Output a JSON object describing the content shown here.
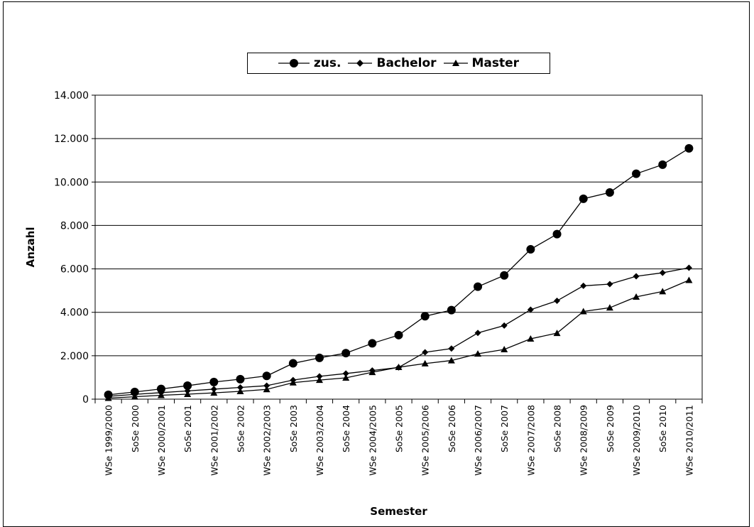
{
  "chart_data": {
    "type": "line",
    "title": "",
    "xlabel": "Semester",
    "ylabel": "Anzahl",
    "ylim": [
      0,
      14000
    ],
    "yticks": [
      0,
      2000,
      4000,
      6000,
      8000,
      10000,
      12000,
      14000
    ],
    "ytick_labels": [
      "0",
      "2.000",
      "4.000",
      "6.000",
      "8.000",
      "10.000",
      "12.000",
      "14.000"
    ],
    "grid": "horizontal",
    "legend_position": "top",
    "categories": [
      "WSe 1999/2000",
      "SoSe 2000",
      "WSe 2000/2001",
      "SoSe 2001",
      "WSe 2001/2002",
      "SoSe 2002",
      "WSe 2002/2003",
      "SoSe 2003",
      "WSe 2003/2004",
      "SoSe 2004",
      "WSe 2004/2005",
      "SoSe 2005",
      "WSe 2005/2006",
      "SoSe 2006",
      "WSe 2006/2007",
      "SoSe 2007",
      "WSe 2007/2008",
      "SoSe 2008",
      "WSe 2008/2009",
      "SoSe 2009",
      "WSe 2009/2010",
      "SoSe 2010",
      "WSe 2010/2011"
    ],
    "series": [
      {
        "name": "zus.",
        "marker": "circle",
        "color": "#000000",
        "values": [
          200,
          330,
          470,
          620,
          790,
          920,
          1070,
          1650,
          1900,
          2120,
          2570,
          2950,
          3820,
          4100,
          5180,
          5700,
          6900,
          7600,
          9230,
          9520,
          10380,
          10800,
          11550
        ]
      },
      {
        "name": "Bachelor",
        "marker": "diamond",
        "color": "#000000",
        "values": [
          130,
          220,
          300,
          380,
          460,
          540,
          620,
          880,
          1050,
          1180,
          1320,
          1460,
          2160,
          2330,
          3050,
          3390,
          4120,
          4530,
          5220,
          5300,
          5660,
          5820,
          6050
        ]
      },
      {
        "name": "Master",
        "marker": "triangle",
        "color": "#000000",
        "values": [
          50,
          110,
          180,
          230,
          290,
          360,
          450,
          760,
          880,
          980,
          1240,
          1470,
          1640,
          1780,
          2090,
          2290,
          2780,
          3040,
          4040,
          4210,
          4710,
          4960,
          5480
        ]
      }
    ]
  }
}
